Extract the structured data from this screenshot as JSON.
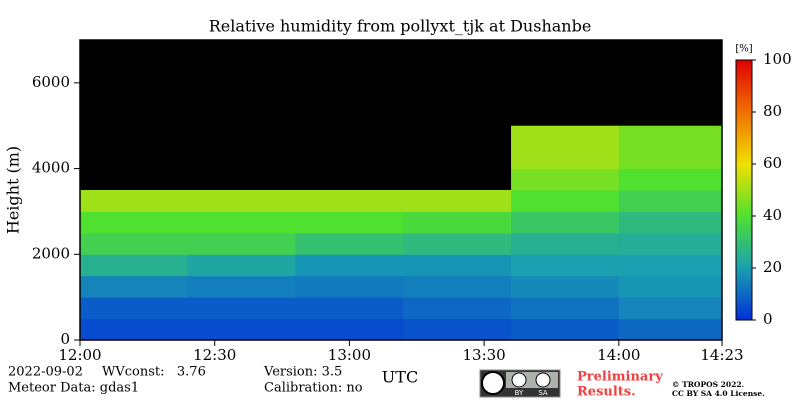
{
  "chart_data": {
    "type": "heatmap",
    "title": "Relative humidity from pollyxt_tjk at Dushanbe",
    "x_label": "UTC",
    "y_label": "Height (m)",
    "x": [
      12,
      12.4,
      12.8,
      13.2,
      13.6,
      14.0,
      14.383
    ],
    "y": [
      0,
      500,
      1000,
      1500,
      2000,
      2500,
      3000,
      3500,
      4000,
      5000,
      6000,
      7000
    ],
    "z": [
      [
        5,
        5,
        5,
        6,
        8,
        10
      ],
      [
        8,
        8,
        8,
        10,
        12,
        15
      ],
      [
        15,
        14,
        13,
        14,
        16,
        18
      ],
      [
        25,
        22,
        18,
        18,
        20,
        20
      ],
      [
        35,
        35,
        30,
        28,
        25,
        24
      ],
      [
        40,
        40,
        40,
        38,
        32,
        28
      ],
      [
        50,
        50,
        50,
        50,
        40,
        35
      ],
      [
        null,
        null,
        null,
        null,
        45,
        40
      ],
      [
        null,
        null,
        null,
        null,
        50,
        45
      ],
      [
        null,
        null,
        null,
        null,
        null,
        null
      ],
      [
        null,
        null,
        null,
        null,
        null,
        null
      ]
    ],
    "xlim": [
      12,
      14.383
    ],
    "xticks": [
      {
        "value": 12,
        "label": "12:00"
      },
      {
        "value": 12.5,
        "label": "12:30"
      },
      {
        "value": 13,
        "label": "13:00"
      },
      {
        "value": 13.5,
        "label": "13:30"
      },
      {
        "value": 14,
        "label": "14:00"
      },
      {
        "value": 14.383,
        "label": "14:23"
      }
    ],
    "ylim": [
      0,
      7000
    ],
    "yticks": [
      0,
      2000,
      4000,
      6000
    ],
    "background": "#000000",
    "colorbar": {
      "label": "[%]",
      "zlim": [
        0,
        100
      ],
      "ticks": [
        0,
        20,
        40,
        60,
        80,
        100
      ],
      "colorscale": [
        "#0030d8",
        "#1aa0b0",
        "#50e030",
        "#f0e000",
        "#f07000",
        "#e00000"
      ]
    }
  },
  "footer": {
    "date": "2022-09-02",
    "wvconst": "WVconst:   3.76",
    "meteor": "Meteor Data: gdas1",
    "version": "Version: 3.5",
    "calibration": "Calibration: no",
    "preliminary": [
      "Preliminary",
      "Results."
    ],
    "badge": [
      "BY",
      "SA"
    ],
    "copyright": [
      "© TROPOS 2022.",
      "CC BY SA 4.0 License."
    ]
  }
}
